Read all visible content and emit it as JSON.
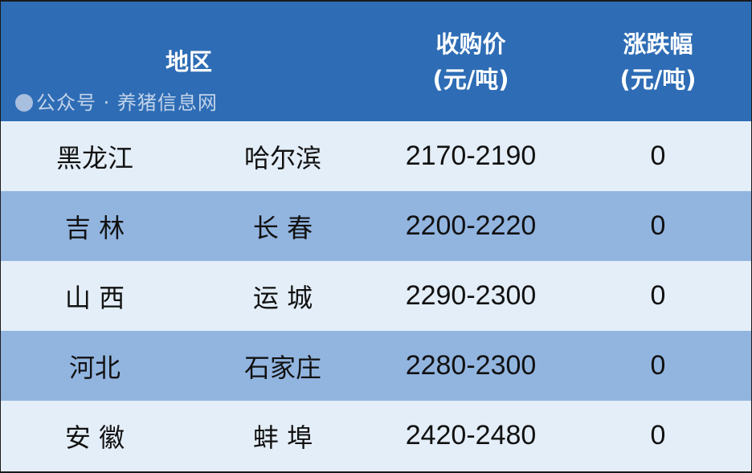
{
  "header": {
    "region": "地区",
    "price_line1": "收购价",
    "price_line2": "(元/吨)",
    "change_line1": "涨跌幅",
    "change_line2": "(元/吨)"
  },
  "rows": [
    {
      "province": "黑龙江",
      "city": "哈尔滨",
      "price": "2170-2190",
      "change": "0"
    },
    {
      "province": "吉 林",
      "city": "长 春",
      "price": "2200-2220",
      "change": "0"
    },
    {
      "province": "山 西",
      "city": "运 城",
      "price": "2290-2300",
      "change": "0"
    },
    {
      "province": "河北",
      "city": "石家庄",
      "price": "2280-2300",
      "change": "0"
    },
    {
      "province": "安 徽",
      "city": "蚌 埠",
      "price": "2420-2480",
      "change": "0"
    }
  ],
  "watermark": "公众号 · 养猪信息网",
  "colors": {
    "header": "#2e6db5",
    "row_light": "#e4eef8",
    "row_dark": "#92b5e0"
  }
}
